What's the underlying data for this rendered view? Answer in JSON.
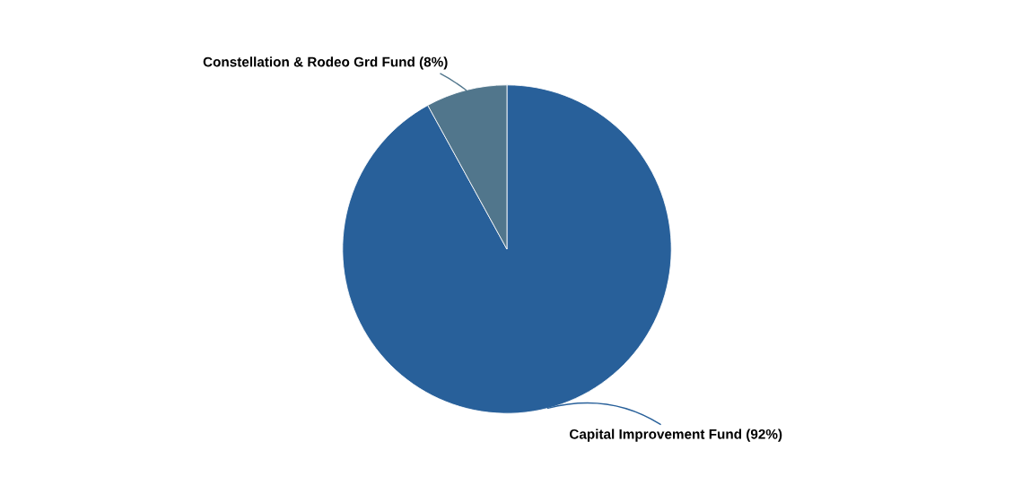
{
  "chart_data": {
    "type": "pie",
    "categories": [
      "Capital Improvement Fund (92%)",
      "Constellation & Rodeo Grd Fund (8%)"
    ],
    "values": [
      92,
      8
    ],
    "colors": [
      "#28609a",
      "#51768c"
    ],
    "legend": false
  }
}
